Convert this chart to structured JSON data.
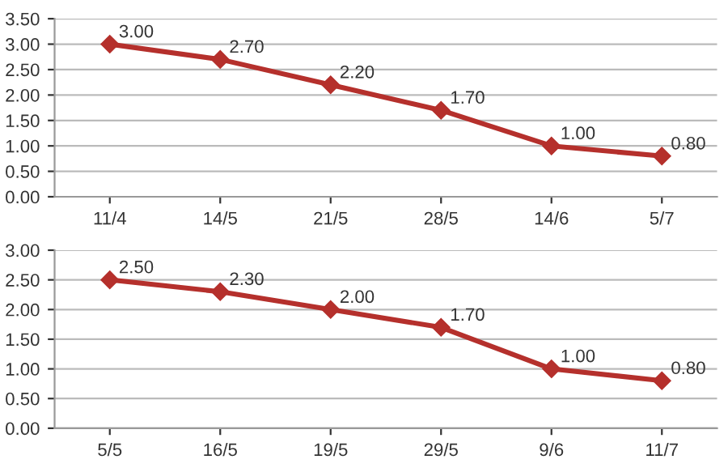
{
  "chart_data": [
    {
      "type": "line",
      "categories": [
        "11/4",
        "14/5",
        "21/5",
        "28/5",
        "14/6",
        "5/7"
      ],
      "series": [
        {
          "color": "#b5302c",
          "values": [
            3.0,
            2.7,
            2.2,
            1.7,
            1.0,
            0.8
          ],
          "value_labels": [
            "3.00",
            "2.70",
            "2.20",
            "1.70",
            "1.00",
            "0.80"
          ]
        }
      ],
      "ylim": [
        0,
        3.5
      ],
      "yticks": [
        {
          "value": 0,
          "label": "0.00"
        },
        {
          "value": 0.5,
          "label": "0.50"
        },
        {
          "value": 1,
          "label": "1.00"
        },
        {
          "value": 1.5,
          "label": "1.50"
        },
        {
          "value": 2,
          "label": "2.00"
        },
        {
          "value": 2.5,
          "label": "2.50"
        },
        {
          "value": 3,
          "label": "3.00"
        },
        {
          "value": 3.5,
          "label": "3.50"
        }
      ],
      "grid": "y",
      "marker": "diamond",
      "line_style": "solid"
    },
    {
      "type": "line",
      "categories": [
        "5/5",
        "16/5",
        "19/5",
        "29/5",
        "9/6",
        "11/7"
      ],
      "series": [
        {
          "color": "#b5302c",
          "values": [
            2.5,
            2.3,
            2.0,
            1.7,
            1.0,
            0.8
          ],
          "value_labels": [
            "2.50",
            "2.30",
            "2.00",
            "1.70",
            "1.00",
            "0.80"
          ]
        }
      ],
      "ylim": [
        0,
        3
      ],
      "yticks": [
        {
          "value": 0,
          "label": "0.00"
        },
        {
          "value": 0.5,
          "label": "0.50"
        },
        {
          "value": 1,
          "label": "1.00"
        },
        {
          "value": 1.5,
          "label": "1.50"
        },
        {
          "value": 2,
          "label": "2.00"
        },
        {
          "value": 2.5,
          "label": "2.50"
        },
        {
          "value": 3,
          "label": "3.00"
        }
      ],
      "grid": "y",
      "marker": "diamond",
      "line_style": "solid"
    }
  ]
}
